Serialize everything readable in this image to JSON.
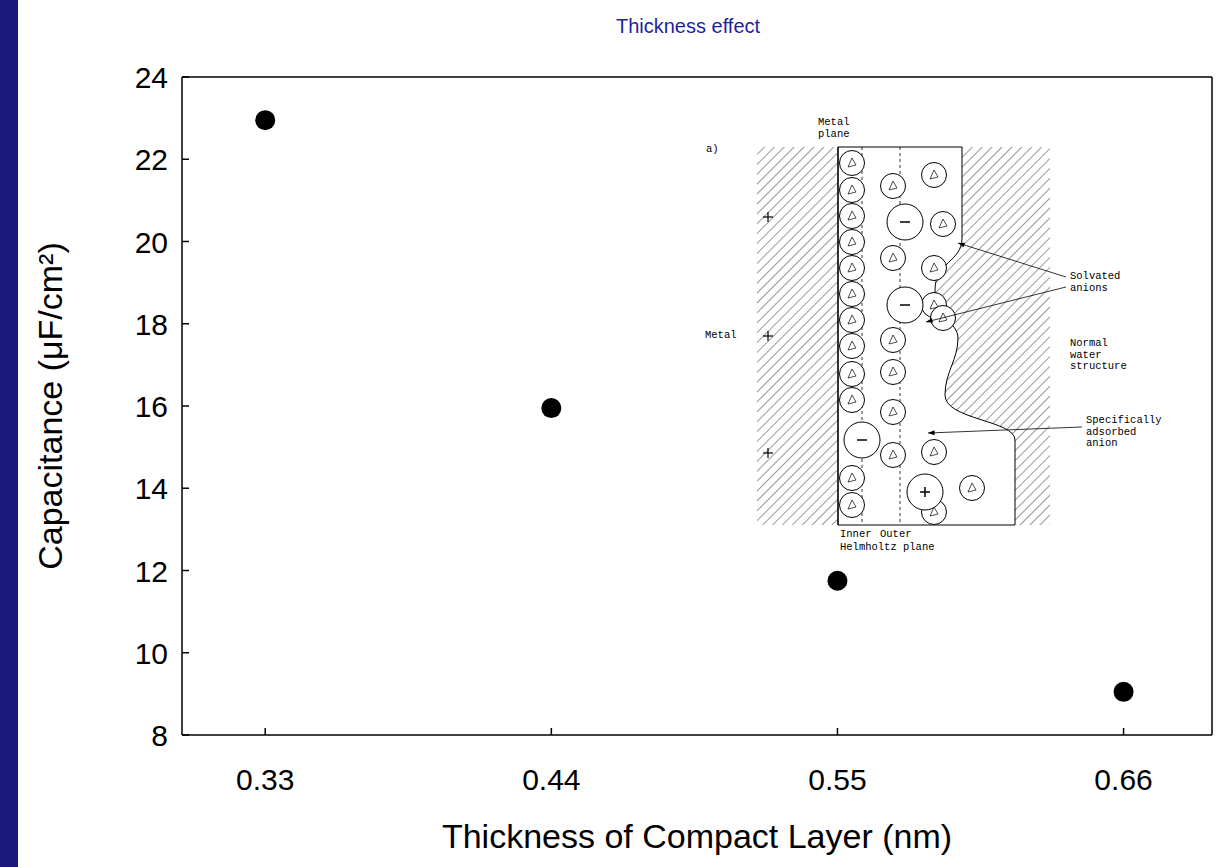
{
  "chart_data": {
    "type": "scatter",
    "title": "Thickness effect",
    "x_label": "Thickness of Compact Layer (nm)",
    "y_label": "Capacitance (μF/cm²)",
    "x": [
      0.33,
      0.44,
      0.55,
      0.66
    ],
    "values": [
      22.95,
      15.95,
      11.75,
      9.05
    ],
    "xlim": [
      0.298,
      0.694
    ],
    "ylim": [
      8,
      24
    ],
    "xticks": [
      0.33,
      0.44,
      0.55,
      0.66
    ],
    "yticks": [
      8,
      10,
      12,
      14,
      16,
      18,
      20,
      22,
      24
    ],
    "color": "#000000",
    "marker": "circle",
    "annotations": [
      "a)",
      "Metal plane",
      "Metal",
      "Solvated anions",
      "Normal water structure",
      "Specifically adsorbed anion",
      "Inner",
      "Outer",
      "Helmholtz plane"
    ]
  }
}
